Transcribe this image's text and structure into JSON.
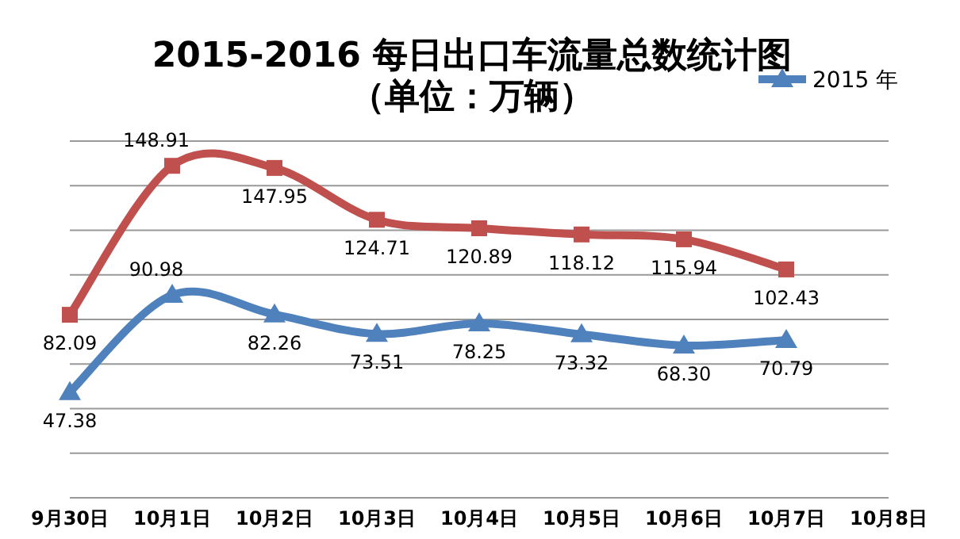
{
  "chart_data": {
    "type": "line",
    "title": "2015-2016 每日出口车流量总数统计图",
    "subtitle": "（单位：万辆）",
    "categories": [
      "9月30日",
      "10月1日",
      "10月2日",
      "10月3日",
      "10月4日",
      "10月5日",
      "10月6日",
      "10月7日",
      "10月8日"
    ],
    "series": [
      {
        "color": "#c0504d",
        "marker": "square",
        "values": [
          82.09,
          148.91,
          147.95,
          124.71,
          120.89,
          118.12,
          115.94,
          102.43,
          null
        ],
        "value_labels": [
          "82.09",
          "148.91",
          "147.95",
          "124.71",
          "120.89",
          "118.12",
          "115.94",
          "102.43",
          null
        ]
      },
      {
        "name": "2015 年",
        "color": "#4f81bd",
        "marker": "triangle",
        "values": [
          47.38,
          90.98,
          82.26,
          73.51,
          78.25,
          73.32,
          68.3,
          70.79,
          null
        ],
        "value_labels": [
          "47.38",
          "90.98",
          "82.26",
          "73.51",
          "78.25",
          "73.32",
          "68.30",
          "70.79",
          null
        ]
      }
    ],
    "ylim": [
      0,
      160
    ],
    "yticks": [
      {
        "value": 0,
        "label": null
      },
      {
        "value": 20,
        "label": null
      },
      {
        "value": 40,
        "label": null
      },
      {
        "value": 60,
        "label": null
      },
      {
        "value": 80,
        "label": null
      },
      {
        "value": 100,
        "label": null
      },
      {
        "value": 120,
        "label": null
      },
      {
        "value": 140,
        "label": null
      },
      {
        "value": 160,
        "label": null
      }
    ],
    "grid": "y",
    "tick_labels": "x",
    "legend": "top right",
    "line_style": "solid"
  }
}
